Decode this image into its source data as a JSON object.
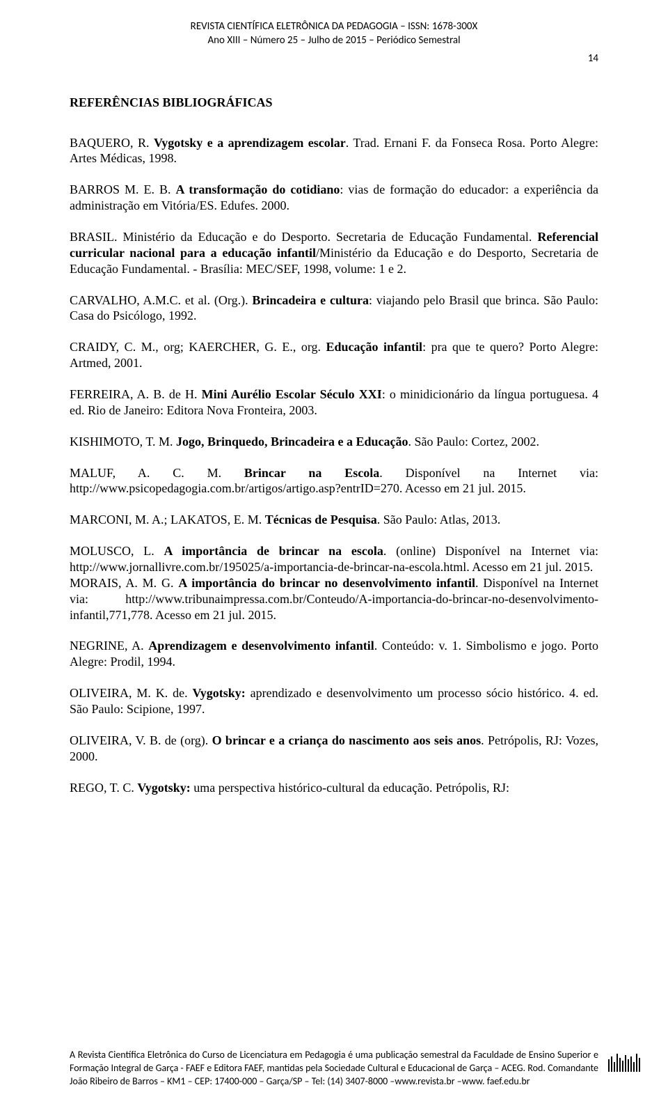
{
  "header": {
    "line1": "REVISTA CIENTÍFICA ELETRÔNICA DA PEDAGOGIA – ISSN: 1678-300X",
    "line2": "Ano XIII – Número 25 – Julho de 2015 – Periódico Semestral",
    "page_number": "14"
  },
  "section_title": "REFERÊNCIAS BIBLIOGRÁFICAS",
  "refs": [
    {
      "segments": [
        {
          "t": "BAQUERO, R. "
        },
        {
          "t": "Vygotsky e a aprendizagem escolar",
          "b": true
        },
        {
          "t": ". Trad. Ernani F. da Fonseca Rosa. Porto Alegre: Artes Médicas, 1998."
        }
      ]
    },
    {
      "segments": [
        {
          "t": "BARROS M. E. B. "
        },
        {
          "t": "A transformação do cotidiano",
          "b": true
        },
        {
          "t": ": vias de formação do educador: a experiência da administração em Vitória/ES. Edufes. 2000."
        }
      ]
    },
    {
      "segments": [
        {
          "t": "BRASIL. Ministério da Educação e do Desporto. Secretaria de Educação Fundamental. "
        },
        {
          "t": "Referencial curricular nacional para a educação infantil",
          "b": true
        },
        {
          "t": "/Ministério da Educação e do Desporto, Secretaria de Educação Fundamental. - Brasília: MEC/SEF, 1998, volume: 1 e 2."
        }
      ]
    },
    {
      "segments": [
        {
          "t": "CARVALHO, A.M.C. et al. (Org.). "
        },
        {
          "t": "Brincadeira e cultura",
          "b": true
        },
        {
          "t": ": viajando pelo Brasil que brinca. São Paulo: Casa do Psicólogo, 1992."
        }
      ]
    },
    {
      "segments": [
        {
          "t": "CRAIDY, C. M., org; KAERCHER, G. E., org. "
        },
        {
          "t": "Educação infantil",
          "b": true
        },
        {
          "t": ": pra que te quero? Porto Alegre: Artmed, 2001."
        }
      ]
    },
    {
      "segments": [
        {
          "t": "FERREIRA, A. B. de H. "
        },
        {
          "t": "Mini Aurélio Escolar Século XXI",
          "b": true
        },
        {
          "t": ": o minidicionário da língua portuguesa. 4 ed. Rio de Janeiro: Editora Nova Fronteira, 2003."
        }
      ]
    },
    {
      "segments": [
        {
          "t": "KISHIMOTO, T. M. "
        },
        {
          "t": "Jogo, Brinquedo, Brincadeira e a Educação",
          "b": true
        },
        {
          "t": ". São Paulo: Cortez, 2002."
        }
      ]
    },
    {
      "segments": [
        {
          "t": "MALUF, A. C. M. "
        },
        {
          "t": "Brincar na Escola",
          "b": true
        },
        {
          "t": ". Disponível na Internet via: http://www.psicopedagogia.com.br/artigos/artigo.asp?entrID=270. Acesso em 21 jul. 2015."
        }
      ]
    },
    {
      "segments": [
        {
          "t": "MARCONI, M. A.; LAKATOS, E. M. "
        },
        {
          "t": "Técnicas de Pesquisa",
          "b": true
        },
        {
          "t": ". São Paulo: Atlas, 2013."
        }
      ]
    },
    {
      "segments": [
        {
          "t": "MOLUSCO, L. "
        },
        {
          "t": "A importância de brincar na escola",
          "b": true
        },
        {
          "t": ". (online) Disponível na Internet via: http://www.jornallivre.com.br/195025/a-importancia-de-brincar-na-escola.html. Acesso em 21 jul. 2015."
        }
      ],
      "no_gap_after": true
    },
    {
      "segments": [
        {
          "t": "MORAIS, A. M. G. "
        },
        {
          "t": "A importância do brincar no desenvolvimento infantil",
          "b": true
        },
        {
          "t": ". Disponível na Internet via: http://www.tribunaimpressa.com.br/Conteudo/A-importancia-do-brincar-no-desenvolvimento-infantil,771,778. Acesso em 21 jul. 2015."
        }
      ]
    },
    {
      "segments": [
        {
          "t": "NEGRINE, A. "
        },
        {
          "t": "Aprendizagem e desenvolvimento infantil",
          "b": true
        },
        {
          "t": ". Conteúdo: v. 1. Simbolismo e jogo. Porto Alegre: Prodil, 1994."
        }
      ]
    },
    {
      "segments": [
        {
          "t": "OLIVEIRA, M. K. de. "
        },
        {
          "t": "Vygotsky:",
          "b": true
        },
        {
          "t": " aprendizado e desenvolvimento um processo sócio histórico. 4. ed. São Paulo: Scipione, 1997."
        }
      ]
    },
    {
      "segments": [
        {
          "t": "OLIVEIRA, V. B. de (org). "
        },
        {
          "t": "O brincar e a criança do nascimento aos seis anos",
          "b": true
        },
        {
          "t": ". Petrópolis, RJ: Vozes, 2000."
        }
      ]
    },
    {
      "segments": [
        {
          "t": "REGO, T. C. "
        },
        {
          "t": "Vygotsky:",
          "b": true
        },
        {
          "t": " uma perspectiva histórico-cultural da educação. Petrópolis, RJ:"
        }
      ]
    }
  ],
  "footer": {
    "text": "A Revista Científica Eletrônica do Curso de Licenciatura em Pedagogia é uma publicação semestral da Faculdade de Ensino Superior e Formação Integral de Garça - FAEF e Editora FAEF, mantidas pela Sociedade Cultural e Educacional de Garça – ACEG. Rod. Comandante João Ribeiro de Barros – KM1 – CEP: 17400-000 – Garça/SP – Tel: (14) 3407-8000 –www.revista.br –www. faef.edu.br"
  },
  "barcode_heights": [
    18,
    22,
    14,
    26,
    20,
    16,
    24,
    18,
    22,
    14,
    26,
    20
  ]
}
